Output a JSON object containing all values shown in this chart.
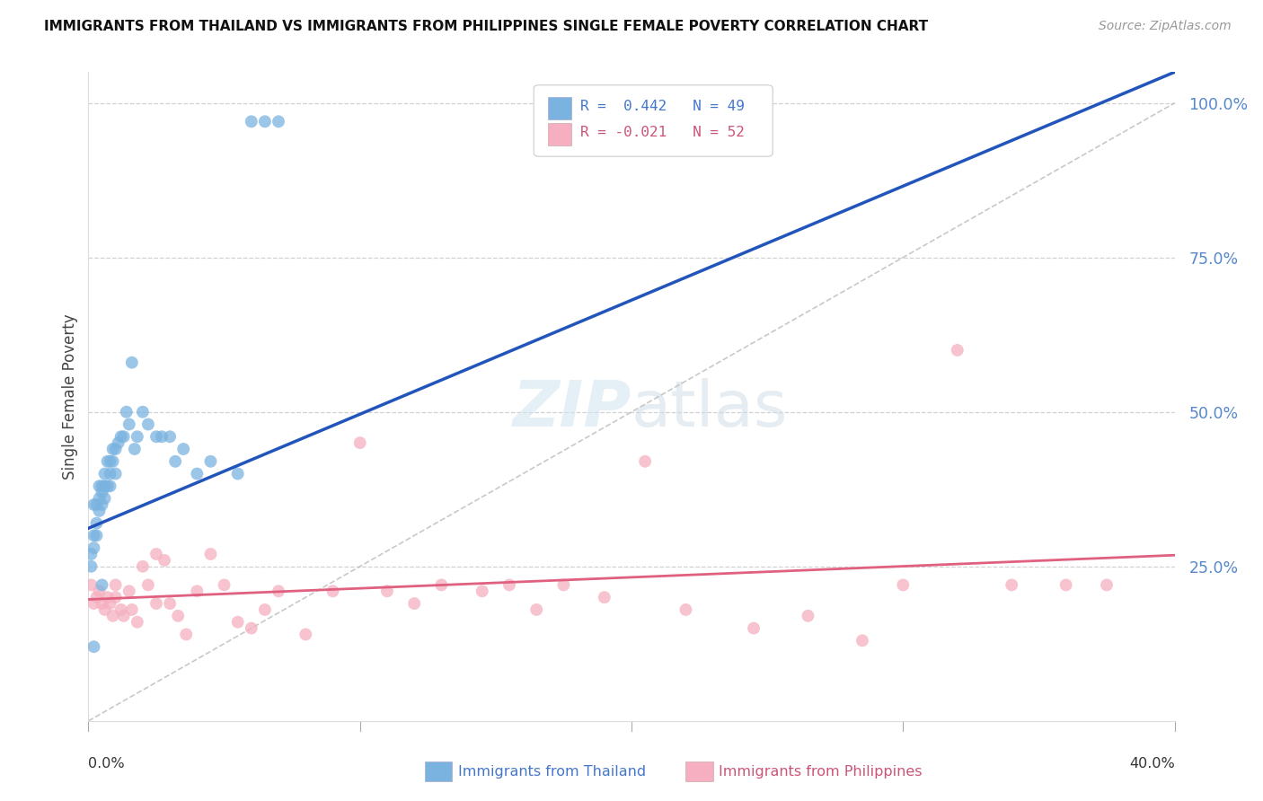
{
  "title": "IMMIGRANTS FROM THAILAND VS IMMIGRANTS FROM PHILIPPINES SINGLE FEMALE POVERTY CORRELATION CHART",
  "source": "Source: ZipAtlas.com",
  "ylabel": "Single Female Poverty",
  "yticks": [
    0.0,
    0.25,
    0.5,
    0.75,
    1.0
  ],
  "ytick_labels": [
    "",
    "25.0%",
    "50.0%",
    "75.0%",
    "100.0%"
  ],
  "xtick_labels_bottom": [
    "0.0%",
    "40.0%"
  ],
  "xmin": 0.0,
  "xmax": 0.4,
  "ymin": 0.0,
  "ymax": 1.05,
  "legend_r1": "R =  0.442",
  "legend_n1": "N = 49",
  "legend_r2": "R = -0.021",
  "legend_n2": "N = 52",
  "legend_label1": "Immigrants from Thailand",
  "legend_label2": "Immigrants from Philippines",
  "color_thailand": "#7ab3e0",
  "color_philippines": "#f5afc0",
  "color_trend_thailand": "#2255bb",
  "color_trend_philippines": "#e06080",
  "color_ref_line": "#bbbbbb",
  "color_legend_text1": "#4477cc",
  "color_legend_text2": "#cc5577",
  "color_ytick": "#5588cc",
  "background_color": "#ffffff",
  "thailand_x": [
    0.001,
    0.001,
    0.002,
    0.002,
    0.002,
    0.003,
    0.003,
    0.003,
    0.004,
    0.004,
    0.004,
    0.005,
    0.005,
    0.005,
    0.006,
    0.006,
    0.006,
    0.007,
    0.007,
    0.008,
    0.008,
    0.008,
    0.009,
    0.009,
    0.01,
    0.01,
    0.011,
    0.012,
    0.013,
    0.014,
    0.015,
    0.016,
    0.017,
    0.018,
    0.02,
    0.022,
    0.025,
    0.027,
    0.03,
    0.032,
    0.035,
    0.04,
    0.045,
    0.055,
    0.06,
    0.065,
    0.07,
    0.002,
    0.005
  ],
  "thailand_y": [
    0.25,
    0.27,
    0.28,
    0.3,
    0.35,
    0.3,
    0.32,
    0.35,
    0.34,
    0.36,
    0.38,
    0.35,
    0.37,
    0.38,
    0.36,
    0.38,
    0.4,
    0.38,
    0.42,
    0.38,
    0.4,
    0.42,
    0.42,
    0.44,
    0.4,
    0.44,
    0.45,
    0.46,
    0.46,
    0.5,
    0.48,
    0.58,
    0.44,
    0.46,
    0.5,
    0.48,
    0.46,
    0.46,
    0.46,
    0.42,
    0.44,
    0.4,
    0.42,
    0.4,
    0.97,
    0.97,
    0.97,
    0.12,
    0.22
  ],
  "philippines_x": [
    0.001,
    0.002,
    0.003,
    0.004,
    0.005,
    0.006,
    0.007,
    0.008,
    0.009,
    0.01,
    0.012,
    0.013,
    0.015,
    0.016,
    0.018,
    0.02,
    0.022,
    0.025,
    0.028,
    0.03,
    0.033,
    0.036,
    0.04,
    0.045,
    0.05,
    0.055,
    0.06,
    0.065,
    0.07,
    0.08,
    0.09,
    0.1,
    0.11,
    0.12,
    0.13,
    0.145,
    0.155,
    0.165,
    0.175,
    0.19,
    0.205,
    0.22,
    0.245,
    0.265,
    0.285,
    0.3,
    0.32,
    0.34,
    0.36,
    0.375,
    0.01,
    0.025
  ],
  "philippines_y": [
    0.22,
    0.19,
    0.2,
    0.21,
    0.19,
    0.18,
    0.2,
    0.19,
    0.17,
    0.2,
    0.18,
    0.17,
    0.21,
    0.18,
    0.16,
    0.25,
    0.22,
    0.27,
    0.26,
    0.19,
    0.17,
    0.14,
    0.21,
    0.27,
    0.22,
    0.16,
    0.15,
    0.18,
    0.21,
    0.14,
    0.21,
    0.45,
    0.21,
    0.19,
    0.22,
    0.21,
    0.22,
    0.18,
    0.22,
    0.2,
    0.42,
    0.18,
    0.15,
    0.17,
    0.13,
    0.22,
    0.6,
    0.22,
    0.22,
    0.22,
    0.22,
    0.19
  ]
}
